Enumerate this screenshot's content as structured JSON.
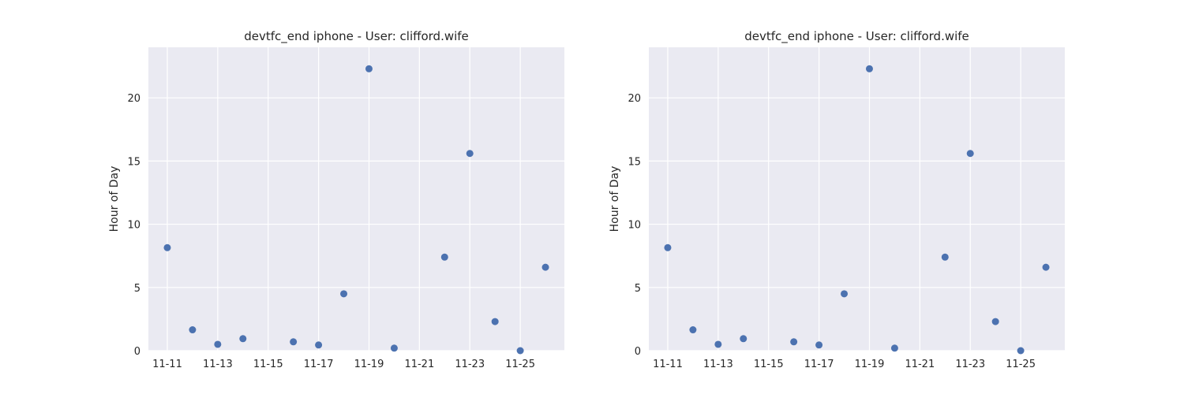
{
  "chart_data": [
    {
      "type": "scatter",
      "title": "devtfc_end iphone - User: clifford.wife",
      "xlabel": "",
      "ylabel": "Hour of Day",
      "x_tick_labels": [
        "11-11",
        "11-13",
        "11-15",
        "11-17",
        "11-19",
        "11-21",
        "11-23",
        "11-25"
      ],
      "y_tick_labels": [
        "0",
        "5",
        "10",
        "15",
        "20"
      ],
      "y_ticks": [
        0,
        5,
        10,
        15,
        20
      ],
      "ylim": [
        0,
        24
      ],
      "grid": true,
      "marker_color": "#4c72b0",
      "background_color": "#eaeaf2",
      "x": [
        "11-11",
        "11-12",
        "11-13",
        "11-14",
        "11-16",
        "11-17",
        "11-18",
        "11-19",
        "11-20",
        "11-22",
        "11-23",
        "11-24",
        "11-25",
        "11-26"
      ],
      "y": [
        8.15,
        1.65,
        0.5,
        0.95,
        0.7,
        0.45,
        4.5,
        22.3,
        0.2,
        7.4,
        15.6,
        2.3,
        0.0,
        6.6
      ]
    },
    {
      "type": "scatter",
      "title": "devtfc_end iphone - User: clifford.wife",
      "xlabel": "",
      "ylabel": "Hour of Day",
      "x_tick_labels": [
        "11-11",
        "11-13",
        "11-15",
        "11-17",
        "11-19",
        "11-21",
        "11-23",
        "11-25"
      ],
      "y_tick_labels": [
        "0",
        "5",
        "10",
        "15",
        "20"
      ],
      "y_ticks": [
        0,
        5,
        10,
        15,
        20
      ],
      "ylim": [
        0,
        24
      ],
      "grid": true,
      "marker_color": "#4c72b0",
      "background_color": "#eaeaf2",
      "x": [
        "11-11",
        "11-12",
        "11-13",
        "11-14",
        "11-16",
        "11-17",
        "11-18",
        "11-19",
        "11-20",
        "11-22",
        "11-23",
        "11-24",
        "11-25",
        "11-26"
      ],
      "y": [
        8.15,
        1.65,
        0.5,
        0.95,
        0.7,
        0.45,
        4.5,
        22.3,
        0.2,
        7.4,
        15.6,
        2.3,
        0.0,
        6.6
      ]
    }
  ]
}
